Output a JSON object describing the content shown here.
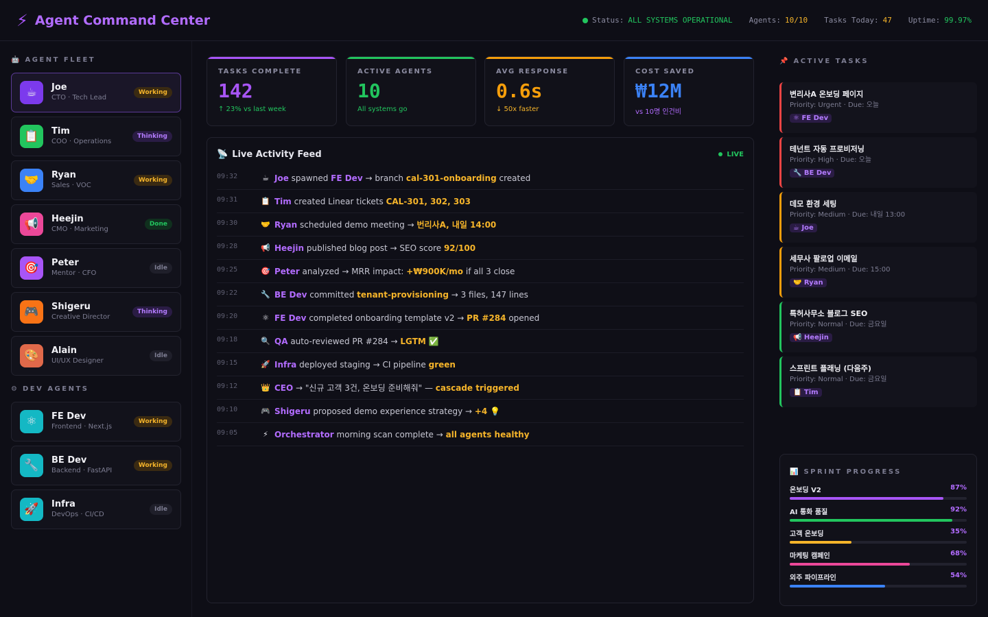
{
  "header": {
    "title": "Agent Command Center",
    "status_label": "Status:",
    "status_value": "ALL SYSTEMS OPERATIONAL",
    "agents_label": "Agents:",
    "agents_value": "10/10",
    "tasks_label": "Tasks Today:",
    "tasks_value": "47",
    "uptime_label": "Uptime:",
    "uptime_value": "99.97%"
  },
  "fleet": {
    "title": "AGENT FLEET",
    "agents": [
      {
        "icon": "coffee-icon",
        "glyph": "☕",
        "color": "#7c3aed",
        "name": "Joe",
        "role": "CTO · Tech Lead",
        "status": "Working"
      },
      {
        "icon": "clipboard-icon",
        "glyph": "📋",
        "color": "#22c55e",
        "name": "Tim",
        "role": "COO · Operations",
        "status": "Thinking"
      },
      {
        "icon": "handshake-icon",
        "glyph": "🤝",
        "color": "#3b82f6",
        "name": "Ryan",
        "role": "Sales · VOC",
        "status": "Working"
      },
      {
        "icon": "megaphone-icon",
        "glyph": "📢",
        "color": "#ec4899",
        "name": "Heejin",
        "role": "CMO · Marketing",
        "status": "Done"
      },
      {
        "icon": "target-icon",
        "glyph": "🎯",
        "color": "#a855f7",
        "name": "Peter",
        "role": "Mentor · CFO",
        "status": "Idle"
      },
      {
        "icon": "gamepad-icon",
        "glyph": "🎮",
        "color": "#f97316",
        "name": "Shigeru",
        "role": "Creative Director",
        "status": "Thinking"
      },
      {
        "icon": "palette-icon",
        "glyph": "🎨",
        "color": "#e0694a",
        "name": "Alain",
        "role": "UI/UX Designer",
        "status": "Idle"
      }
    ]
  },
  "dev": {
    "title": "DEV AGENTS",
    "agents": [
      {
        "icon": "atom-icon",
        "glyph": "⚛",
        "color": "#14b8c4",
        "name": "FE Dev",
        "role": "Frontend · Next.js",
        "status": "Working"
      },
      {
        "icon": "wrench-icon",
        "glyph": "🔧",
        "color": "#14b8c4",
        "name": "BE Dev",
        "role": "Backend · FastAPI",
        "status": "Working"
      },
      {
        "icon": "rocket-icon",
        "glyph": "🚀",
        "color": "#14b8c4",
        "name": "Infra",
        "role": "DevOps · CI/CD",
        "status": "Idle"
      }
    ]
  },
  "kpis": [
    {
      "label": "TASKS COMPLETE",
      "value": "142",
      "sub": "↑ 23% vs last week",
      "color": "#a855f7",
      "sub_color": "#22c55e"
    },
    {
      "label": "ACTIVE AGENTS",
      "value": "10",
      "sub": "All systems go",
      "color": "#22c55e",
      "sub_color": "#22c55e"
    },
    {
      "label": "AVG RESPONSE",
      "value": "0.6s",
      "sub": "↓ 50x faster",
      "color": "#f59e0b",
      "sub_color": "#f5b42a"
    },
    {
      "label": "COST SAVED",
      "value": "₩12M",
      "sub": "vs 10명 인건비",
      "color": "#3b82f6",
      "sub_color": "#b26cff"
    }
  ],
  "feed": {
    "title": "Live Activity Feed",
    "live_label": "LIVE",
    "items": [
      {
        "time": "09:32",
        "glyph": "☕",
        "icon": "coffee-icon",
        "parts": [
          [
            "ent",
            "Joe"
          ],
          [
            "t",
            " spawned "
          ],
          [
            "ent",
            "FE Dev"
          ],
          [
            "t",
            " → branch "
          ],
          [
            "hl",
            "cal-301-onboarding"
          ],
          [
            "t",
            " created"
          ]
        ]
      },
      {
        "time": "09:31",
        "glyph": "📋",
        "icon": "clipboard-icon",
        "parts": [
          [
            "ent",
            "Tim"
          ],
          [
            "t",
            " created Linear tickets "
          ],
          [
            "hl",
            "CAL-301, 302, 303"
          ]
        ]
      },
      {
        "time": "09:30",
        "glyph": "🤝",
        "icon": "handshake-icon",
        "parts": [
          [
            "ent",
            "Ryan"
          ],
          [
            "t",
            " scheduled demo meeting → "
          ],
          [
            "hl",
            "번리사A, 내일 14:00"
          ]
        ]
      },
      {
        "time": "09:28",
        "glyph": "📢",
        "icon": "megaphone-icon",
        "parts": [
          [
            "ent",
            "Heejin"
          ],
          [
            "t",
            " published blog post → SEO score "
          ],
          [
            "hl",
            "92/100"
          ]
        ]
      },
      {
        "time": "09:25",
        "glyph": "🎯",
        "icon": "target-icon",
        "parts": [
          [
            "ent",
            "Peter"
          ],
          [
            "t",
            " analyzed → MRR impact: "
          ],
          [
            "hl",
            "+₩900K/mo"
          ],
          [
            "t",
            " if all 3 close"
          ]
        ]
      },
      {
        "time": "09:22",
        "glyph": "🔧",
        "icon": "wrench-icon",
        "parts": [
          [
            "ent",
            "BE Dev"
          ],
          [
            "t",
            " committed "
          ],
          [
            "hl",
            "tenant-provisioning"
          ],
          [
            "t",
            " → 3 files, 147 lines"
          ]
        ]
      },
      {
        "time": "09:20",
        "glyph": "⚛",
        "icon": "atom-icon",
        "parts": [
          [
            "ent",
            "FE Dev"
          ],
          [
            "t",
            " completed onboarding template v2 → "
          ],
          [
            "hl",
            "PR #284"
          ],
          [
            "t",
            " opened"
          ]
        ]
      },
      {
        "time": "09:18",
        "glyph": "🔍",
        "icon": "magnifier-icon",
        "parts": [
          [
            "ent",
            "QA"
          ],
          [
            "t",
            " auto-reviewed PR #284 → "
          ],
          [
            "hl",
            "LGTM"
          ],
          [
            "t",
            " ✅"
          ]
        ]
      },
      {
        "time": "09:15",
        "glyph": "🚀",
        "icon": "rocket-icon",
        "parts": [
          [
            "ent",
            "Infra"
          ],
          [
            "t",
            " deployed staging → CI pipeline "
          ],
          [
            "hl",
            "green"
          ]
        ]
      },
      {
        "time": "09:12",
        "glyph": "👑",
        "icon": "crown-icon",
        "parts": [
          [
            "ent",
            "CEO"
          ],
          [
            "t",
            " → \"신규 고객 3건, 온보딩 준비해줘\" — "
          ],
          [
            "hl",
            "cascade triggered"
          ]
        ]
      },
      {
        "time": "09:10",
        "glyph": "🎮",
        "icon": "gamepad-icon",
        "parts": [
          [
            "ent",
            "Shigeru"
          ],
          [
            "t",
            " proposed demo experience strategy → "
          ],
          [
            "hl",
            "+4"
          ],
          [
            "t",
            " 💡"
          ]
        ]
      },
      {
        "time": "09:05",
        "glyph": "⚡",
        "icon": "lightning-icon",
        "parts": [
          [
            "ent",
            "Orchestrator"
          ],
          [
            "t",
            " morning scan complete → "
          ],
          [
            "hl",
            "all agents healthy"
          ]
        ]
      }
    ]
  },
  "tasks": {
    "title": "ACTIVE TASKS",
    "items": [
      {
        "title": "변리사A 온보딩 페이지",
        "meta": "Priority: Urgent · Due: 오늘",
        "tag": "⚛ FE Dev",
        "color": "#ef4444",
        "tag_color": "#b47cff",
        "tag_bg": "#2a1c44"
      },
      {
        "title": "테넌트 자동 프로비저닝",
        "meta": "Priority: High · Due: 오늘",
        "tag": "🔧 BE Dev",
        "color": "#ef4444",
        "tag_color": "#b47cff",
        "tag_bg": "#2a1c44"
      },
      {
        "title": "데모 환경 세팅",
        "meta": "Priority: Medium · Due: 내일 13:00",
        "tag": "☕ Joe",
        "color": "#f59e0b",
        "tag_color": "#b47cff",
        "tag_bg": "#2a1c44"
      },
      {
        "title": "세무사 팔로업 이메일",
        "meta": "Priority: Medium · Due: 15:00",
        "tag": "🤝 Ryan",
        "color": "#f59e0b",
        "tag_color": "#b47cff",
        "tag_bg": "#2a1c44"
      },
      {
        "title": "특허사무소 블로그 SEO",
        "meta": "Priority: Normal · Due: 금요일",
        "tag": "📢 Heejin",
        "color": "#22c55e",
        "tag_color": "#b47cff",
        "tag_bg": "#2a1c44"
      },
      {
        "title": "스프린트 플래닝 (다음주)",
        "meta": "Priority: Normal · Due: 금요일",
        "tag": "📋 Tim",
        "color": "#22c55e",
        "tag_color": "#b47cff",
        "tag_bg": "#2a1c44"
      }
    ]
  },
  "sprint": {
    "title": "SPRINT PROGRESS",
    "items": [
      {
        "label": "온보딩 V2",
        "pct": "87%",
        "value": 0.87,
        "color": "#a855f7"
      },
      {
        "label": "AI 통화 품질",
        "pct": "92%",
        "value": 0.92,
        "color": "#22c55e"
      },
      {
        "label": "고객 온보딩",
        "pct": "35%",
        "value": 0.35,
        "color": "#f5b42a"
      },
      {
        "label": "마케팅 캠페인",
        "pct": "68%",
        "value": 0.68,
        "color": "#ec4899"
      },
      {
        "label": "외주 파이프라인",
        "pct": "54%",
        "value": 0.54,
        "color": "#3b82f6"
      }
    ]
  }
}
